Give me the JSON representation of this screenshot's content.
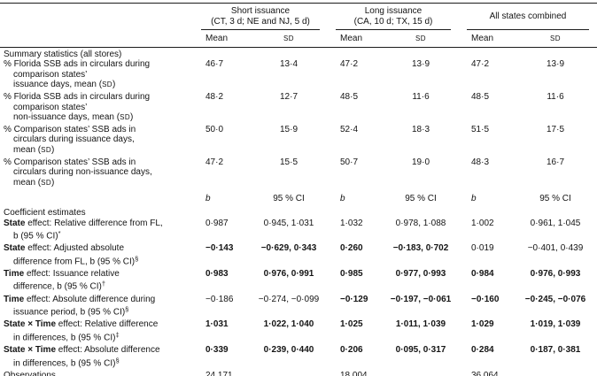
{
  "header": {
    "groups": [
      {
        "title": "Short issuance",
        "subtitle": "(CT, 3 d; NE and NJ, 5 d)"
      },
      {
        "title": "Long issuance",
        "subtitle": "(CA, 10 d; TX, 15 d)"
      },
      {
        "title": "All states combined",
        "subtitle": ""
      }
    ],
    "columns": [
      "Mean",
      {
        "t": "SD",
        "s": "sc"
      },
      "Mean",
      {
        "t": "SD",
        "s": "sc"
      },
      "Mean",
      {
        "t": "SD",
        "s": "sc"
      }
    ]
  },
  "rows": [
    {
      "type": "section",
      "label": [
        {
          "t": "Summary statistics (all stores)"
        }
      ],
      "cells": [
        "",
        "",
        "",
        "",
        "",
        ""
      ]
    },
    {
      "type": "data",
      "label": [
        {
          "t": "% Florida SSB ads in circulars during\ncomparison states’\nissuance days, mean ("
        },
        {
          "t": "SD",
          "s": "sc"
        },
        {
          "t": ")"
        }
      ],
      "cells": [
        "46·7",
        "13·4",
        "47·2",
        "13·9",
        "47·2",
        "13·9"
      ]
    },
    {
      "type": "data",
      "label": [
        {
          "t": "% Florida SSB ads in circulars during\ncomparison states’\nnon-issuance days, mean ("
        },
        {
          "t": "SD",
          "s": "sc"
        },
        {
          "t": ")"
        }
      ],
      "cells": [
        "48·2",
        "12·7",
        "48·5",
        "11·6",
        "48·5",
        "11·6"
      ]
    },
    {
      "type": "data",
      "label": [
        {
          "t": "% Comparison states’ SSB ads in\ncirculars during issuance days,\nmean ("
        },
        {
          "t": "SD",
          "s": "sc"
        },
        {
          "t": ")"
        }
      ],
      "cells": [
        "50·0",
        "15·9",
        "52·4",
        "18·3",
        "51·5",
        "17·5"
      ]
    },
    {
      "type": "data",
      "label": [
        {
          "t": "% Comparison states’ SSB ads in\ncirculars during non-issuance days,\nmean ("
        },
        {
          "t": "SD",
          "s": "sc"
        },
        {
          "t": ")"
        }
      ],
      "cells": [
        "47·2",
        "15·5",
        "50·7",
        "19·0",
        "48·3",
        "16·7"
      ]
    },
    {
      "type": "colhead2",
      "label": [
        {
          "t": ""
        }
      ],
      "cells": [
        {
          "t": "b",
          "s": "i"
        },
        "95 % CI",
        {
          "t": "b",
          "s": "i"
        },
        "95 % CI",
        {
          "t": "b",
          "s": "i"
        },
        "95 % CI"
      ]
    },
    {
      "type": "section",
      "label": [
        {
          "t": "Coefficient estimates"
        }
      ],
      "cells": [
        "",
        "",
        "",
        "",
        "",
        ""
      ]
    },
    {
      "type": "data",
      "label": [
        {
          "t": "State",
          "s": "b"
        },
        {
          "t": " effect: Relative difference from FL,\nb (95 % CI)"
        },
        {
          "t": "*",
          "s": "sup"
        }
      ],
      "cells": [
        "0·987",
        "0·945, 1·031",
        "1·032",
        "0·978, 1·088",
        "1·002",
        "0·961, 1·045"
      ]
    },
    {
      "type": "data",
      "label": [
        {
          "t": "State",
          "s": "b"
        },
        {
          "t": " effect: Adjusted absolute\ndifference from FL, b (95 % CI)"
        },
        {
          "t": "§",
          "s": "sup"
        }
      ],
      "cells": [
        {
          "t": "−0·143",
          "s": "b"
        },
        {
          "t": "−0·629, 0·343",
          "s": "b"
        },
        {
          "t": "0·260",
          "s": "b"
        },
        {
          "t": "−0·183, 0·702",
          "s": "b"
        },
        "0·019",
        "−0·401, 0·439"
      ]
    },
    {
      "type": "data",
      "label": [
        {
          "t": "Time",
          "s": "b"
        },
        {
          "t": " effect: Issuance relative\ndifference, b (95 % CI)"
        },
        {
          "t": "†",
          "s": "sup"
        }
      ],
      "cells": [
        {
          "t": "0·983",
          "s": "b"
        },
        {
          "t": "0·976, 0·991",
          "s": "b"
        },
        {
          "t": "0·985",
          "s": "b"
        },
        {
          "t": "0·977, 0·993",
          "s": "b"
        },
        {
          "t": "0·984",
          "s": "b"
        },
        {
          "t": "0·976, 0·993",
          "s": "b"
        }
      ]
    },
    {
      "type": "data",
      "label": [
        {
          "t": "Time",
          "s": "b"
        },
        {
          "t": " effect: Absolute difference during\nissuance period, b (95 % CI)"
        },
        {
          "t": "§",
          "s": "sup"
        }
      ],
      "cells": [
        "−0·186",
        "−0·274, −0·099",
        {
          "t": "−0·129",
          "s": "b"
        },
        {
          "t": "−0·197, −0·061",
          "s": "b"
        },
        {
          "t": "−0·160",
          "s": "b"
        },
        {
          "t": "−0·245, −0·076",
          "s": "b"
        }
      ]
    },
    {
      "type": "data",
      "label": [
        {
          "t": "State × Time",
          "s": "b"
        },
        {
          "t": " effect: Relative difference\nin differences, b (95 % CI)"
        },
        {
          "t": "‡",
          "s": "sup"
        }
      ],
      "cells": [
        {
          "t": "1·031",
          "s": "b"
        },
        {
          "t": "1·022, 1·040",
          "s": "b"
        },
        {
          "t": "1·025",
          "s": "b"
        },
        {
          "t": "1·011, 1·039",
          "s": "b"
        },
        {
          "t": "1·029",
          "s": "b"
        },
        {
          "t": "1·019, 1·039",
          "s": "b"
        }
      ]
    },
    {
      "type": "data",
      "label": [
        {
          "t": "State × Time",
          "s": "b"
        },
        {
          "t": " effect: Absolute difference\nin differences, b (95 % CI)"
        },
        {
          "t": "§",
          "s": "sup"
        }
      ],
      "cells": [
        {
          "t": "0·339",
          "s": "b"
        },
        {
          "t": "0·239, 0·440",
          "s": "b"
        },
        {
          "t": "0·206",
          "s": "b"
        },
        {
          "t": "0·095, 0·317",
          "s": "b"
        },
        {
          "t": "0·284",
          "s": "b"
        },
        {
          "t": "0·187, 0·381",
          "s": "b"
        }
      ]
    },
    {
      "type": "data",
      "label": [
        {
          "t": "Observations"
        }
      ],
      "cells": [
        "24 171",
        "",
        "18 004",
        "",
        "36 064",
        ""
      ]
    }
  ]
}
